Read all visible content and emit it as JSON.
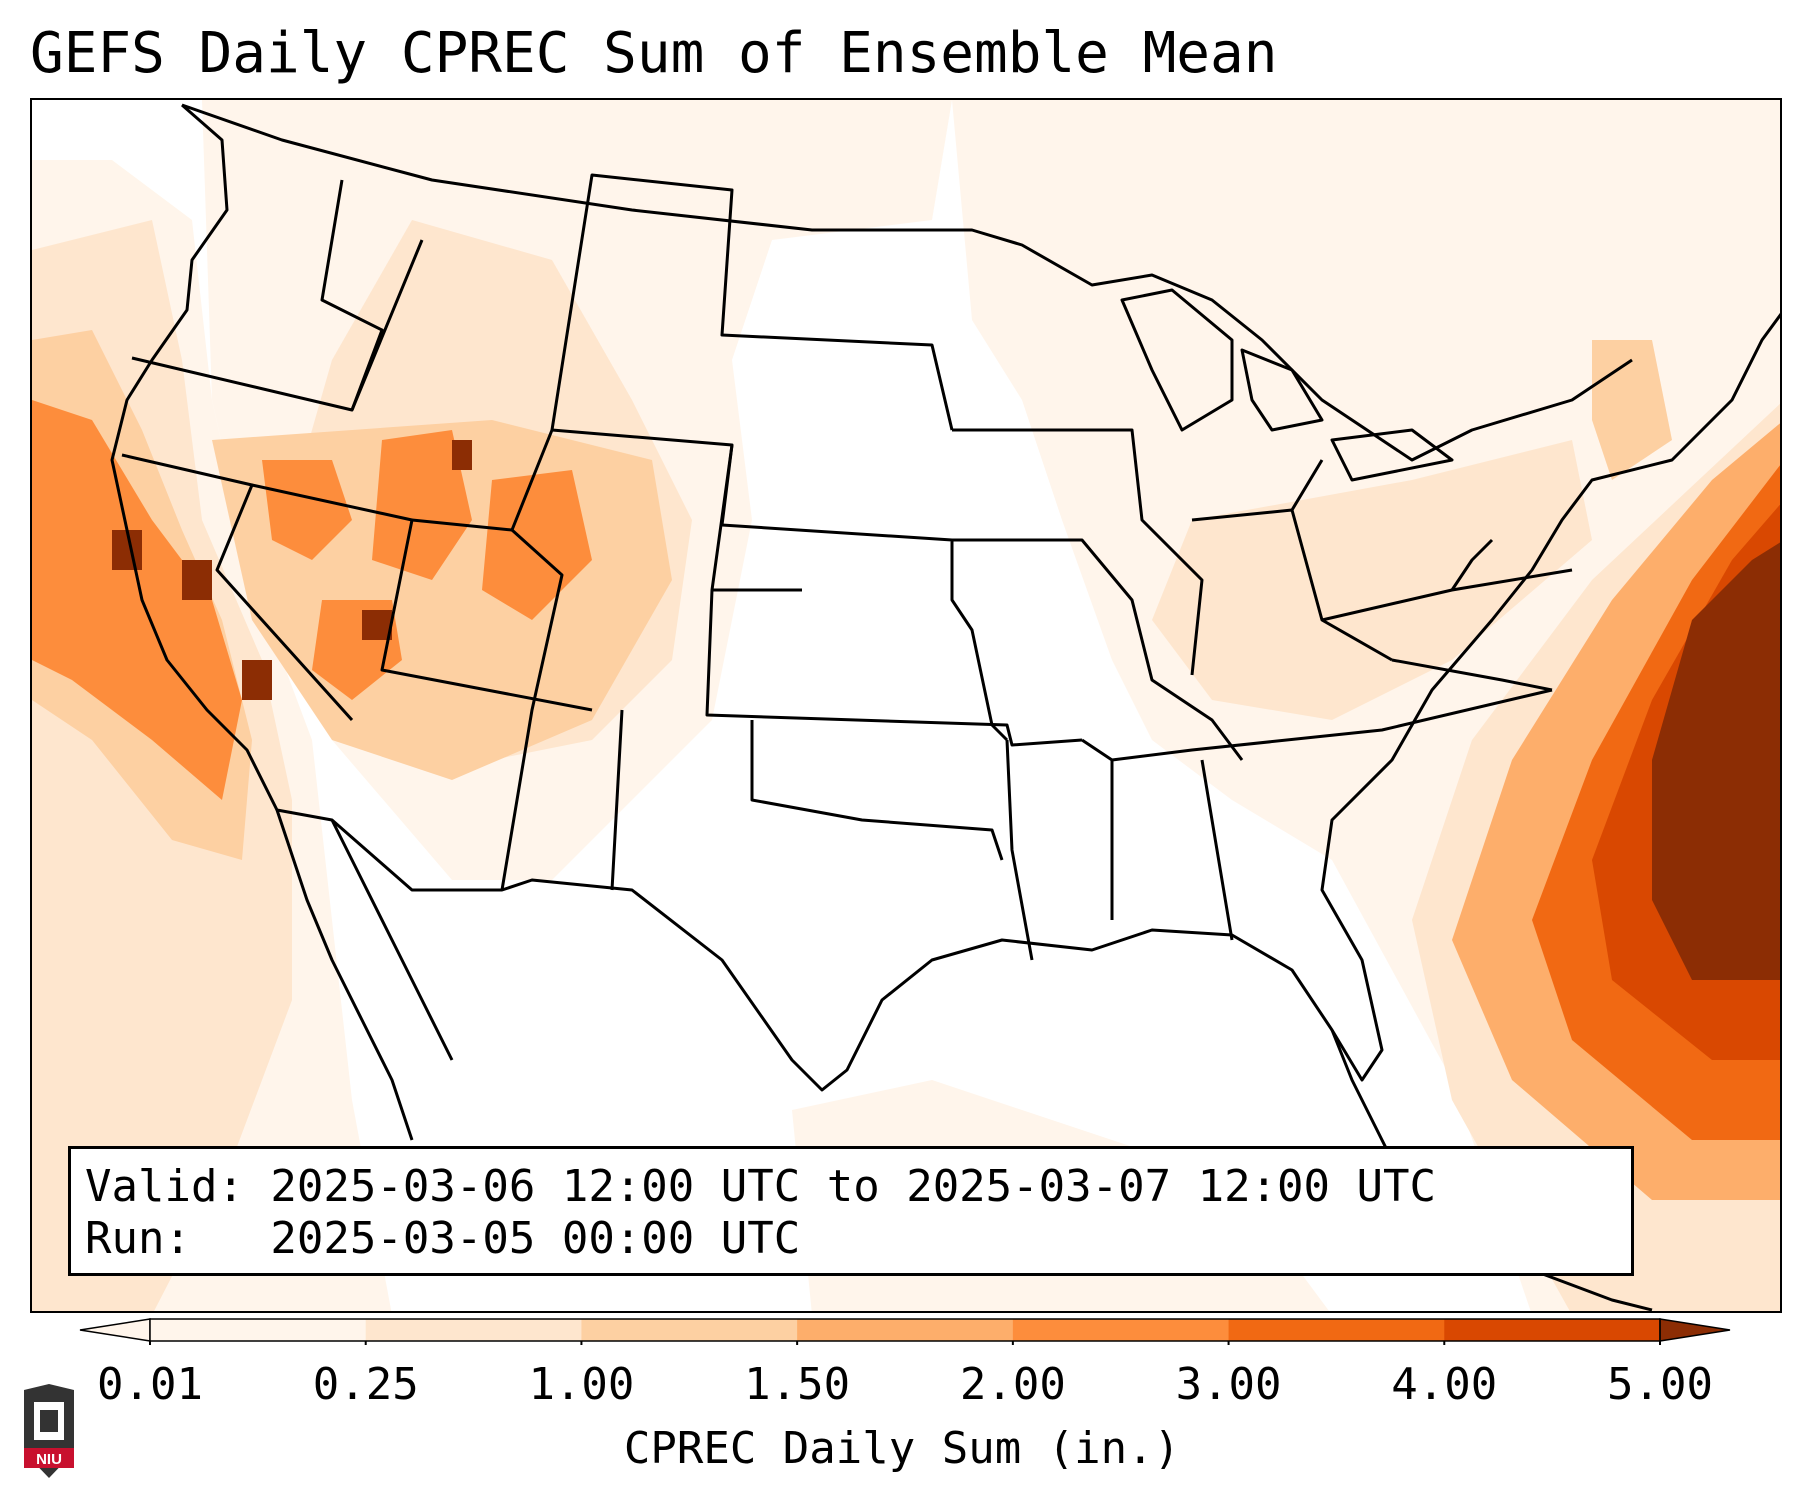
{
  "title": "GEFS Daily CPREC Sum of Ensemble Mean",
  "info": {
    "valid_line": "Valid: 2025-03-06 12:00 UTC to 2025-03-07 12:00 UTC",
    "run_line": "Run:   2025-03-05 00:00 UTC"
  },
  "colorbar": {
    "label": "CPREC Daily Sum (in.)",
    "ticks": [
      "0.01",
      "0.25",
      "1.00",
      "1.50",
      "2.00",
      "3.00",
      "4.00",
      "5.00"
    ],
    "colors": [
      "#fff5eb",
      "#fee6ce",
      "#fdd0a2",
      "#fdae6b",
      "#fd8d3c",
      "#f16913",
      "#d94801",
      "#8c2d04"
    ],
    "extend": "both"
  },
  "logo": {
    "text": "NIU",
    "color": "#c8102e"
  }
}
